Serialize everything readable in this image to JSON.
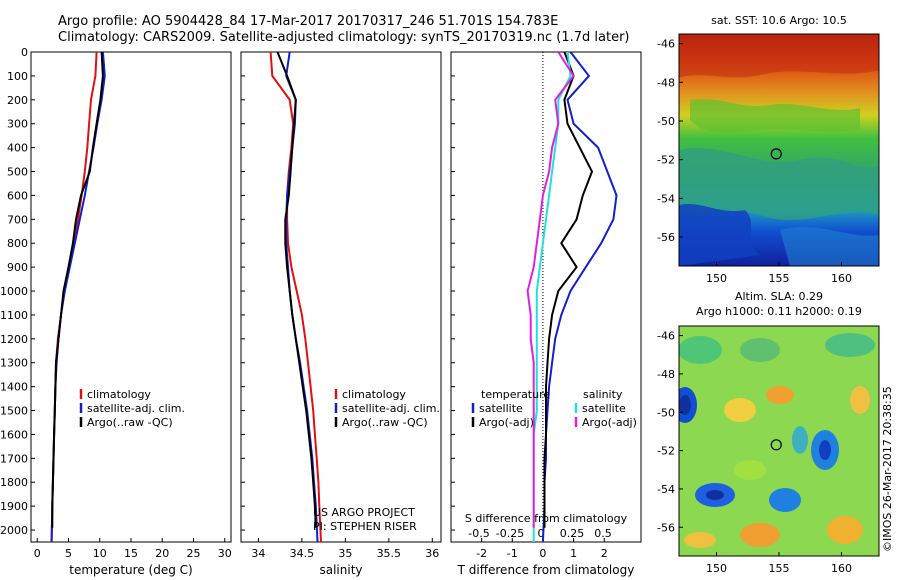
{
  "header": {
    "line1": "Argo profile: AO 5904428_84 17-Mar-2017 20170317_246 51.701S 154.783E",
    "line2": "Climatology: CARS2009. Satellite-adjusted climatology: synTS_20170319.nc (1.7d later)"
  },
  "footer": {
    "project": "US ARGO PROJECT",
    "pi": "PI: STEPHEN RISER",
    "imos": "©IMOS 26-Mar-2017 20:38:35"
  },
  "colors": {
    "climatology": "#e01010",
    "satellite": "#1020d0",
    "argo": "#000000",
    "sat_salinity": "#20e0e0",
    "argo_salinity": "#e020e0"
  },
  "chart_data": [
    {
      "type": "line",
      "xlabel": "temperature (deg C)",
      "ylabel": "",
      "xlim": [
        -1,
        31
      ],
      "ylim": [
        2050,
        0
      ],
      "xticks": [
        0,
        5,
        10,
        15,
        20,
        25,
        30
      ],
      "yticks": [
        0,
        100,
        200,
        300,
        400,
        500,
        600,
        700,
        800,
        900,
        1000,
        1100,
        1200,
        1300,
        1400,
        1500,
        1600,
        1700,
        1800,
        1900,
        2000
      ],
      "legend": [
        "climatology",
        "satellite-adj. clim.",
        "Argo(..raw -QC)"
      ],
      "series": [
        {
          "name": "climatology",
          "color": "#e01010",
          "x": [
            9.5,
            9.3,
            8.6,
            8.3,
            8.0,
            7.6,
            7.1,
            6.5,
            5.8,
            5.0,
            4.3,
            3.8,
            3.3,
            3.0,
            2.9,
            2.8,
            2.7,
            2.6,
            2.5,
            2.4,
            2.3
          ],
          "y": [
            0,
            100,
            200,
            300,
            400,
            500,
            600,
            700,
            800,
            900,
            1000,
            1100,
            1200,
            1300,
            1400,
            1500,
            1600,
            1700,
            1800,
            1900,
            2050
          ]
        },
        {
          "name": "satellite-adj. clim.",
          "color": "#1020d0",
          "x": [
            10.5,
            10.8,
            10.3,
            9.6,
            9.0,
            8.3,
            7.6,
            6.8,
            6.0,
            5.2,
            4.4,
            3.8,
            3.4,
            3.1,
            2.9,
            2.8,
            2.7,
            2.6,
            2.5,
            2.4,
            2.3
          ],
          "y": [
            0,
            100,
            200,
            300,
            400,
            500,
            600,
            700,
            800,
            900,
            1000,
            1100,
            1200,
            1300,
            1400,
            1500,
            1600,
            1700,
            1800,
            1900,
            2050
          ]
        },
        {
          "name": "Argo(..raw -QC)",
          "color": "#000000",
          "x": [
            10.3,
            10.5,
            10.1,
            9.5,
            8.9,
            8.4,
            7.0,
            6.2,
            5.7,
            5.0,
            4.2,
            3.8,
            3.4,
            3.0,
            2.9,
            2.8,
            2.7,
            2.6,
            2.5,
            2.4,
            2.4
          ],
          "y": [
            0,
            100,
            200,
            300,
            400,
            500,
            600,
            700,
            800,
            900,
            1000,
            1100,
            1200,
            1300,
            1400,
            1500,
            1600,
            1700,
            1800,
            1900,
            1990
          ]
        }
      ]
    },
    {
      "type": "line",
      "xlabel": "salinity",
      "xlim": [
        33.8,
        36.1
      ],
      "ylim": [
        2050,
        0
      ],
      "xticks": [
        34,
        34.5,
        35,
        35.5,
        36
      ],
      "legend": [
        "climatology",
        "satellite-adj. clim.",
        "Argo(..raw -QC)"
      ],
      "series": [
        {
          "name": "climatology",
          "color": "#e01010",
          "x": [
            34.14,
            34.16,
            34.36,
            34.4,
            34.38,
            34.35,
            34.33,
            34.33,
            34.34,
            34.38,
            34.44,
            34.5,
            34.54,
            34.57,
            34.6,
            34.63,
            34.65,
            34.67,
            34.69,
            34.7,
            34.72
          ],
          "y": [
            0,
            100,
            200,
            300,
            400,
            500,
            600,
            700,
            800,
            900,
            1000,
            1100,
            1200,
            1300,
            1400,
            1500,
            1600,
            1700,
            1800,
            1900,
            2050
          ]
        },
        {
          "name": "satellite-adj. clim.",
          "color": "#1020d0",
          "x": [
            34.36,
            34.32,
            34.43,
            34.42,
            34.39,
            34.36,
            34.33,
            34.32,
            34.32,
            34.34,
            34.36,
            34.39,
            34.43,
            34.48,
            34.52,
            34.56,
            34.59,
            34.62,
            34.64,
            34.66,
            34.68
          ],
          "y": [
            0,
            100,
            200,
            300,
            400,
            500,
            600,
            700,
            800,
            900,
            1000,
            1100,
            1200,
            1300,
            1400,
            1500,
            1600,
            1700,
            1800,
            1900,
            2050
          ]
        },
        {
          "name": "Argo(..raw -QC)",
          "color": "#000000",
          "x": [
            34.22,
            34.33,
            34.43,
            34.41,
            34.39,
            34.37,
            34.35,
            34.31,
            34.31,
            34.33,
            34.36,
            34.39,
            34.43,
            34.47,
            34.51,
            34.55,
            34.58,
            34.61,
            34.63,
            34.65,
            34.66
          ],
          "y": [
            0,
            100,
            200,
            300,
            400,
            500,
            600,
            700,
            800,
            900,
            1000,
            1100,
            1200,
            1300,
            1400,
            1500,
            1600,
            1700,
            1800,
            1900,
            1990
          ]
        }
      ]
    },
    {
      "type": "line",
      "xlabel": "T difference from climatology",
      "top_axis_label": "S difference from climatology",
      "xlim": [
        -3.0,
        3.2
      ],
      "ylim": [
        2050,
        0
      ],
      "xticks": [
        -2,
        -1,
        0,
        1,
        2
      ],
      "top_ticks": [
        "-0.5",
        "-0.25",
        "0",
        "0.25",
        "0.5"
      ],
      "legend_temperature": {
        "title": "temperature",
        "items": [
          "satellite",
          "Argo(-adj)"
        ]
      },
      "legend_salinity": {
        "title": "salinity",
        "items": [
          "satellite",
          "Argo(-adj)"
        ]
      },
      "series": [
        {
          "name": "satellite",
          "color": "#1020d0",
          "x": [
            0.9,
            1.5,
            0.8,
            1.0,
            1.8,
            2.1,
            2.4,
            2.3,
            1.9,
            1.4,
            0.9,
            0.6,
            0.4,
            0.3,
            0.2,
            0.15,
            0.1,
            0.1,
            0.05,
            0.05,
            0.0
          ],
          "y": [
            0,
            100,
            200,
            300,
            400,
            500,
            600,
            700,
            800,
            900,
            1000,
            1100,
            1200,
            1300,
            1400,
            1500,
            1600,
            1700,
            1800,
            1900,
            2050
          ]
        },
        {
          "name": "Argo(-adj)",
          "color": "#000000",
          "x": [
            0.7,
            1.0,
            0.7,
            0.8,
            1.2,
            1.6,
            1.3,
            1.1,
            0.6,
            1.1,
            0.5,
            0.3,
            0.2,
            0.15,
            0.1,
            0.1,
            0.1,
            0.05,
            0.05,
            0.05,
            0.05
          ],
          "y": [
            0,
            100,
            200,
            300,
            400,
            500,
            600,
            700,
            800,
            900,
            1000,
            1100,
            1200,
            1300,
            1400,
            1500,
            1600,
            1700,
            1800,
            1900,
            1990
          ]
        },
        {
          "name": "satellite (salinity)",
          "color": "#20e0e0",
          "x": [
            0.8,
            0.9,
            0.5,
            0.5,
            0.4,
            0.3,
            0.2,
            0.1,
            0.0,
            -0.1,
            -0.2,
            -0.2,
            -0.2,
            -0.2,
            -0.2,
            -0.2,
            -0.3,
            -0.3,
            -0.3,
            -0.3,
            -0.3
          ],
          "y": [
            0,
            100,
            200,
            300,
            400,
            500,
            600,
            700,
            800,
            900,
            1000,
            1100,
            1200,
            1300,
            1400,
            1500,
            1600,
            1700,
            1800,
            1900,
            2050
          ]
        },
        {
          "name": "Argo(-adj) (salinity)",
          "color": "#e020e0",
          "x": [
            0.5,
            1.0,
            0.4,
            0.5,
            0.3,
            0.2,
            0.0,
            -0.1,
            -0.2,
            -0.3,
            -0.5,
            -0.4,
            -0.4,
            -0.3,
            -0.3,
            -0.3,
            -0.3,
            -0.3,
            -0.3,
            -0.3,
            -0.3
          ],
          "y": [
            0,
            100,
            200,
            300,
            400,
            500,
            600,
            700,
            800,
            900,
            1000,
            1100,
            1200,
            1300,
            1400,
            1500,
            1600,
            1700,
            1800,
            1900,
            1990
          ]
        }
      ]
    },
    {
      "type": "heatmap",
      "title": "sat. SST: 10.6  Argo: 10.5",
      "xlim": [
        147,
        163
      ],
      "ylim": [
        -57.5,
        -45.5
      ],
      "xticks": [
        150,
        155,
        160
      ],
      "yticks": [
        -46,
        -48,
        -50,
        -52,
        -54,
        -56
      ],
      "marker": {
        "x": 154.78,
        "y": -51.7
      }
    },
    {
      "type": "heatmap",
      "title": "Altim. SLA: 0.29",
      "subtitle": "Argo h1000: 0.11  h2000: 0.19",
      "xlim": [
        147,
        163
      ],
      "ylim": [
        -57.5,
        -45.5
      ],
      "xticks": [
        150,
        155,
        160
      ],
      "yticks": [
        -46,
        -48,
        -50,
        -52,
        -54,
        -56
      ],
      "marker": {
        "x": 154.78,
        "y": -51.7
      }
    }
  ]
}
